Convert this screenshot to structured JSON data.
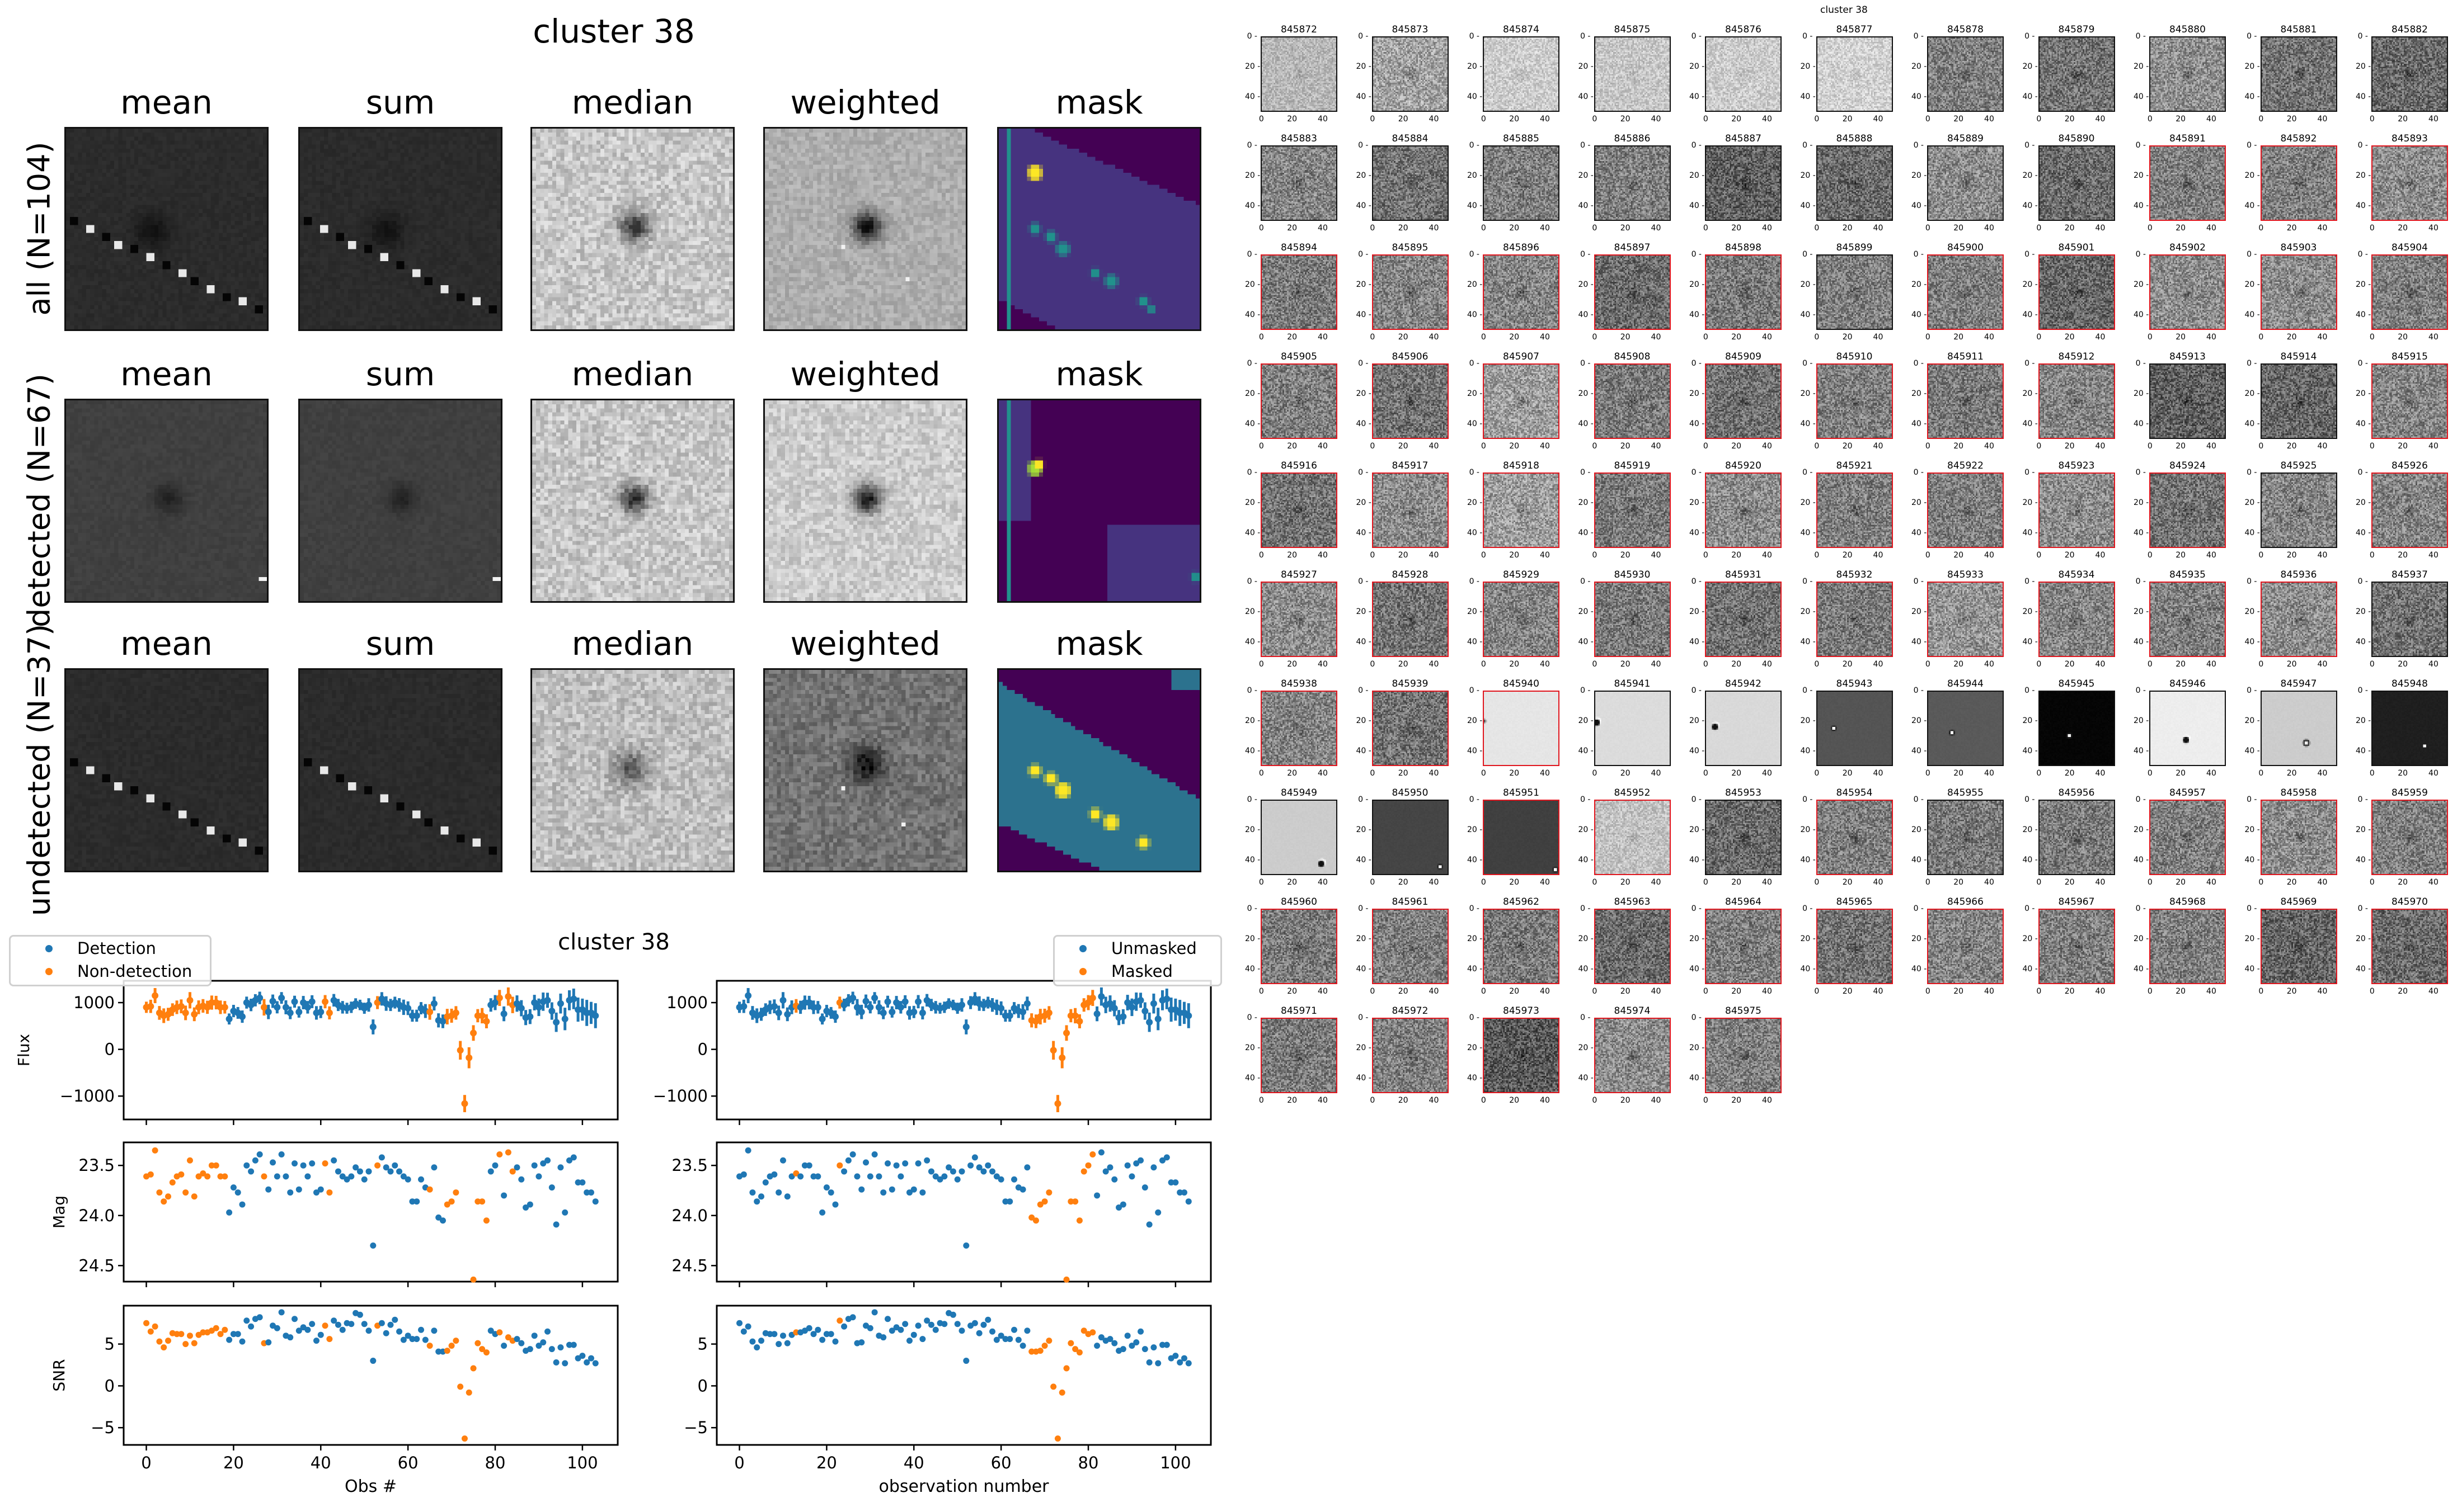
{
  "summary": {
    "title": "cluster 38",
    "columns": [
      "mean",
      "sum",
      "median",
      "weighted",
      "mask"
    ],
    "rows": [
      "all (N=104)",
      "detected (N=67)",
      "undetected (N=37)"
    ]
  },
  "colors": {
    "detection": "#1f77b4",
    "nondetection": "#ff7f0e",
    "masked_frame": "#e0161e"
  },
  "chart_data": [
    {
      "type": "scatter",
      "title": "cluster 38",
      "xlabel": "Obs #",
      "legend": {
        "placement": "top-left",
        "entries": [
          "Detection",
          "Non-detection"
        ]
      },
      "highlight_indices": [
        0,
        1,
        2,
        3,
        4,
        5,
        6,
        7,
        8,
        9,
        10,
        11,
        12,
        13,
        14,
        15,
        16,
        17,
        18,
        27,
        41,
        42,
        53,
        65,
        69,
        70,
        71,
        72,
        73,
        74,
        75,
        76,
        77,
        78,
        81,
        83,
        84
      ]
    },
    {
      "type": "scatter",
      "title": "",
      "xlabel": "observation number",
      "legend": {
        "placement": "top-right",
        "entries": [
          "Unmasked",
          "Masked"
        ]
      },
      "highlight_indices": [
        13,
        23,
        67,
        68,
        69,
        70,
        71,
        72,
        73,
        74,
        75,
        76,
        77,
        78,
        79,
        80,
        81
      ]
    }
  ],
  "series": {
    "x_note": "x = observation index 0..103",
    "xlim": [
      -5.2,
      108.1
    ],
    "xticks": [
      0,
      20,
      40,
      60,
      80,
      100
    ],
    "panels": [
      {
        "ylabel": "Flux",
        "ylim": [
          -1500,
          1467
        ],
        "yticks": [
          -1000,
          0,
          1000
        ],
        "yticklabels": [
          "−1000",
          "0",
          "1000"
        ]
      },
      {
        "ylabel": "Mag",
        "ylim": [
          24.66,
          23.27
        ],
        "yticks": [
          23.5,
          24.0,
          24.5
        ],
        "yticklabels": [
          "23.5",
          "24.0",
          "24.5"
        ]
      },
      {
        "ylabel": "SNR",
        "ylim": [
          -7.06,
          9.59
        ],
        "yticks": [
          -5,
          0,
          5
        ],
        "yticklabels": [
          "−5",
          "0",
          "5"
        ]
      }
    ],
    "flux": [
      900,
      920,
      1150,
      780,
      720,
      750,
      850,
      900,
      920,
      780,
      1050,
      750,
      900,
      930,
      900,
      1000,
      1000,
      900,
      900,
      650,
      820,
      780,
      700,
      1000,
      950,
      1050,
      1100,
      900,
      800,
      1030,
      900,
      1100,
      900,
      780,
      1020,
      800,
      1000,
      900,
      1020,
      780,
      800,
      1020,
      780,
      1050,
      950,
      900,
      880,
      900,
      980,
      950,
      880,
      950,
      480,
      1000,
      1080,
      980,
      950,
      1000,
      950,
      900,
      880,
      720,
      720,
      880,
      820,
      800,
      980,
      620,
      600,
      700,
      720,
      780,
      -20,
      -1160,
      -180,
      350,
      720,
      720,
      600,
      950,
      1000,
      1100,
      760,
      1130,
      950,
      980,
      880,
      680,
      700,
      1000,
      900,
      1020,
      1050,
      820,
      580,
      980,
      650,
      1050,
      1080,
      850,
      850,
      780,
      780,
      720
    ],
    "mag": [
      23.61,
      23.59,
      23.35,
      23.77,
      23.86,
      23.81,
      23.67,
      23.61,
      23.59,
      23.77,
      23.45,
      23.81,
      23.61,
      23.58,
      23.61,
      23.5,
      23.5,
      23.61,
      23.61,
      23.97,
      23.72,
      23.77,
      23.89,
      23.5,
      23.56,
      23.45,
      23.39,
      23.61,
      23.74,
      23.47,
      23.61,
      23.39,
      23.61,
      23.77,
      23.48,
      23.74,
      23.5,
      23.61,
      23.48,
      23.77,
      23.74,
      23.48,
      23.77,
      23.45,
      23.56,
      23.61,
      23.64,
      23.61,
      23.52,
      23.56,
      23.64,
      23.56,
      24.3,
      23.5,
      23.42,
      23.52,
      23.56,
      23.5,
      23.56,
      23.61,
      23.64,
      23.86,
      23.86,
      23.64,
      23.72,
      23.74,
      23.52,
      24.02,
      24.05,
      23.89,
      23.86,
      23.77,
      null,
      null,
      null,
      24.64,
      23.86,
      23.86,
      24.05,
      23.56,
      23.5,
      23.39,
      23.8,
      23.37,
      23.56,
      23.52,
      23.64,
      23.92,
      23.89,
      23.5,
      23.61,
      23.48,
      23.45,
      23.72,
      24.09,
      23.52,
      23.97,
      23.45,
      23.42,
      23.67,
      23.67,
      23.77,
      23.77,
      23.86
    ],
    "snr": [
      7.5,
      6.5,
      7.1,
      5.3,
      4.6,
      5.4,
      6.3,
      6.2,
      6.2,
      5.0,
      6.0,
      5.1,
      6.1,
      6.4,
      6.4,
      6.6,
      6.9,
      6.2,
      6.7,
      5.5,
      6.2,
      6.2,
      5.3,
      7.8,
      7.1,
      8.0,
      8.2,
      5.1,
      5.2,
      7.2,
      6.9,
      8.8,
      6.0,
      5.8,
      8.0,
      6.6,
      7.0,
      6.7,
      7.4,
      5.4,
      6.1,
      7.2,
      5.6,
      7.8,
      7.3,
      6.7,
      7.5,
      7.4,
      8.7,
      8.5,
      7.4,
      6.6,
      3.0,
      7.2,
      7.5,
      6.3,
      7.3,
      7.9,
      6.5,
      5.5,
      6.0,
      5.6,
      5.6,
      6.7,
      5.5,
      4.8,
      6.6,
      4.1,
      4.1,
      4.2,
      4.8,
      5.4,
      -0.1,
      -6.3,
      -0.8,
      2.1,
      5.1,
      4.4,
      4.0,
      6.6,
      6.2,
      6.4,
      4.8,
      5.8,
      5.4,
      5.6,
      5.1,
      4.2,
      4.4,
      6.0,
      4.8,
      5.2,
      6.5,
      4.4,
      2.8,
      4.6,
      2.7,
      4.9,
      4.9,
      3.3,
      3.6,
      2.8,
      3.3,
      2.7
    ]
  },
  "thumbnails": {
    "overlay_title": "cluster 38",
    "ticks": [
      "0",
      "20",
      "40"
    ],
    "masked_ids": [
      "845891",
      "845892",
      "845893",
      "845894",
      "845895",
      "845896",
      "845897",
      "845898",
      "845900",
      "845901",
      "845902",
      "845903",
      "845904",
      "845905",
      "845906",
      "845907",
      "845908",
      "845909",
      "845910",
      "845911",
      "845912",
      "845915",
      "845916",
      "845917",
      "845918",
      "845919",
      "845920",
      "845921",
      "845922",
      "845923",
      "845924",
      "845926",
      "845927",
      "845928",
      "845929",
      "845930",
      "845931",
      "845932",
      "845933",
      "845934",
      "845935",
      "845936",
      "845938",
      "845939",
      "845940",
      "845951",
      "845952",
      "845954",
      "845957",
      "845958",
      "845959",
      "845960",
      "845961",
      "845962",
      "845963",
      "845964",
      "845965",
      "845966",
      "845967",
      "845968",
      "845969",
      "845970",
      "845971",
      "845972",
      "845973",
      "845974",
      "845975"
    ],
    "items": [
      {
        "id": "845872",
        "t": 0.72
      },
      {
        "id": "845873",
        "t": 0.64
      },
      {
        "id": "845874",
        "t": 0.8
      },
      {
        "id": "845875",
        "t": 0.78
      },
      {
        "id": "845876",
        "t": 0.8
      },
      {
        "id": "845877",
        "t": 0.82
      },
      {
        "id": "845878",
        "t": 0.5
      },
      {
        "id": "845879",
        "t": 0.45
      },
      {
        "id": "845880",
        "t": 0.56
      },
      {
        "id": "845881",
        "t": 0.45
      },
      {
        "id": "845882",
        "t": 0.42
      },
      {
        "id": "845883",
        "t": 0.52
      },
      {
        "id": "845884",
        "t": 0.45
      },
      {
        "id": "845885",
        "t": 0.5
      },
      {
        "id": "845886",
        "t": 0.5
      },
      {
        "id": "845887",
        "t": 0.38
      },
      {
        "id": "845888",
        "t": 0.42
      },
      {
        "id": "845889",
        "t": 0.55
      },
      {
        "id": "845890",
        "t": 0.42
      },
      {
        "id": "845891",
        "t": 0.5
      },
      {
        "id": "845892",
        "t": 0.5
      },
      {
        "id": "845893",
        "t": 0.55
      },
      {
        "id": "845894",
        "t": 0.48
      },
      {
        "id": "845895",
        "t": 0.52
      },
      {
        "id": "845896",
        "t": 0.52
      },
      {
        "id": "845897",
        "t": 0.42
      },
      {
        "id": "845898",
        "t": 0.48
      },
      {
        "id": "845899",
        "t": 0.5
      },
      {
        "id": "845900",
        "t": 0.5
      },
      {
        "id": "845901",
        "t": 0.4
      },
      {
        "id": "845902",
        "t": 0.55
      },
      {
        "id": "845903",
        "t": 0.55
      },
      {
        "id": "845904",
        "t": 0.5
      },
      {
        "id": "845905",
        "t": 0.5
      },
      {
        "id": "845906",
        "t": 0.45
      },
      {
        "id": "845907",
        "t": 0.62
      },
      {
        "id": "845908",
        "t": 0.48
      },
      {
        "id": "845909",
        "t": 0.44
      },
      {
        "id": "845910",
        "t": 0.5
      },
      {
        "id": "845911",
        "t": 0.48
      },
      {
        "id": "845912",
        "t": 0.52
      },
      {
        "id": "845913",
        "t": 0.38
      },
      {
        "id": "845914",
        "t": 0.4
      },
      {
        "id": "845915",
        "t": 0.52
      },
      {
        "id": "845916",
        "t": 0.45
      },
      {
        "id": "845917",
        "t": 0.55
      },
      {
        "id": "845918",
        "t": 0.62
      },
      {
        "id": "845919",
        "t": 0.48
      },
      {
        "id": "845920",
        "t": 0.55
      },
      {
        "id": "845921",
        "t": 0.5
      },
      {
        "id": "845922",
        "t": 0.5
      },
      {
        "id": "845923",
        "t": 0.55
      },
      {
        "id": "845924",
        "t": 0.45
      },
      {
        "id": "845925",
        "t": 0.52
      },
      {
        "id": "845926",
        "t": 0.52
      },
      {
        "id": "845927",
        "t": 0.55
      },
      {
        "id": "845928",
        "t": 0.45
      },
      {
        "id": "845929",
        "t": 0.52
      },
      {
        "id": "845930",
        "t": 0.48
      },
      {
        "id": "845931",
        "t": 0.45
      },
      {
        "id": "845932",
        "t": 0.48
      },
      {
        "id": "845933",
        "t": 0.58
      },
      {
        "id": "845934",
        "t": 0.52
      },
      {
        "id": "845935",
        "t": 0.5
      },
      {
        "id": "845936",
        "t": 0.55
      },
      {
        "id": "845937",
        "t": 0.45
      },
      {
        "id": "845938",
        "t": 0.52
      },
      {
        "id": "845939",
        "t": 0.45
      },
      {
        "id": "845940",
        "t": 0.9,
        "flat": 1,
        "src": [
          0,
          20,
          "edge"
        ]
      },
      {
        "id": "845941",
        "t": 0.86,
        "flat": 1,
        "src": [
          1,
          21,
          "dark"
        ]
      },
      {
        "id": "845942",
        "t": 0.85,
        "flat": 1,
        "src": [
          6,
          24,
          "dark"
        ]
      },
      {
        "id": "845943",
        "t": 0.33,
        "flat": 1,
        "src": [
          11,
          25,
          "white"
        ]
      },
      {
        "id": "845944",
        "t": 0.35,
        "flat": 1,
        "src": [
          16,
          28,
          "white"
        ]
      },
      {
        "id": "845945",
        "t": 0.02,
        "flat": 1,
        "src": [
          20,
          30,
          "white"
        ]
      },
      {
        "id": "845946",
        "t": 0.93,
        "flat": 1,
        "src": [
          24,
          33,
          "dark"
        ]
      },
      {
        "id": "845947",
        "t": 0.8,
        "flat": 1,
        "src": [
          30,
          35,
          "ring"
        ]
      },
      {
        "id": "845948",
        "t": 0.12,
        "flat": 1,
        "src": [
          35,
          37,
          "white"
        ]
      },
      {
        "id": "845949",
        "t": 0.8,
        "flat": 1,
        "src": [
          40,
          43,
          "dark"
        ]
      },
      {
        "id": "845950",
        "t": 0.27,
        "flat": 1,
        "src": [
          45,
          45,
          "white"
        ]
      },
      {
        "id": "845951",
        "t": 0.25,
        "flat": 1,
        "src": [
          48,
          47,
          "white"
        ]
      },
      {
        "id": "845952",
        "t": 0.76
      },
      {
        "id": "845953",
        "t": 0.42
      },
      {
        "id": "845954",
        "t": 0.5
      },
      {
        "id": "845955",
        "t": 0.48
      },
      {
        "id": "845956",
        "t": 0.48
      },
      {
        "id": "845957",
        "t": 0.5
      },
      {
        "id": "845958",
        "t": 0.55
      },
      {
        "id": "845959",
        "t": 0.5
      },
      {
        "id": "845960",
        "t": 0.48
      },
      {
        "id": "845961",
        "t": 0.5
      },
      {
        "id": "845962",
        "t": 0.48
      },
      {
        "id": "845963",
        "t": 0.42
      },
      {
        "id": "845964",
        "t": 0.5
      },
      {
        "id": "845965",
        "t": 0.45
      },
      {
        "id": "845966",
        "t": 0.52
      },
      {
        "id": "845967",
        "t": 0.5
      },
      {
        "id": "845968",
        "t": 0.5
      },
      {
        "id": "845969",
        "t": 0.4
      },
      {
        "id": "845970",
        "t": 0.42
      },
      {
        "id": "845971",
        "t": 0.48
      },
      {
        "id": "845972",
        "t": 0.5
      },
      {
        "id": "845973",
        "t": 0.35
      },
      {
        "id": "845974",
        "t": 0.55
      },
      {
        "id": "845975",
        "t": 0.5
      }
    ]
  }
}
